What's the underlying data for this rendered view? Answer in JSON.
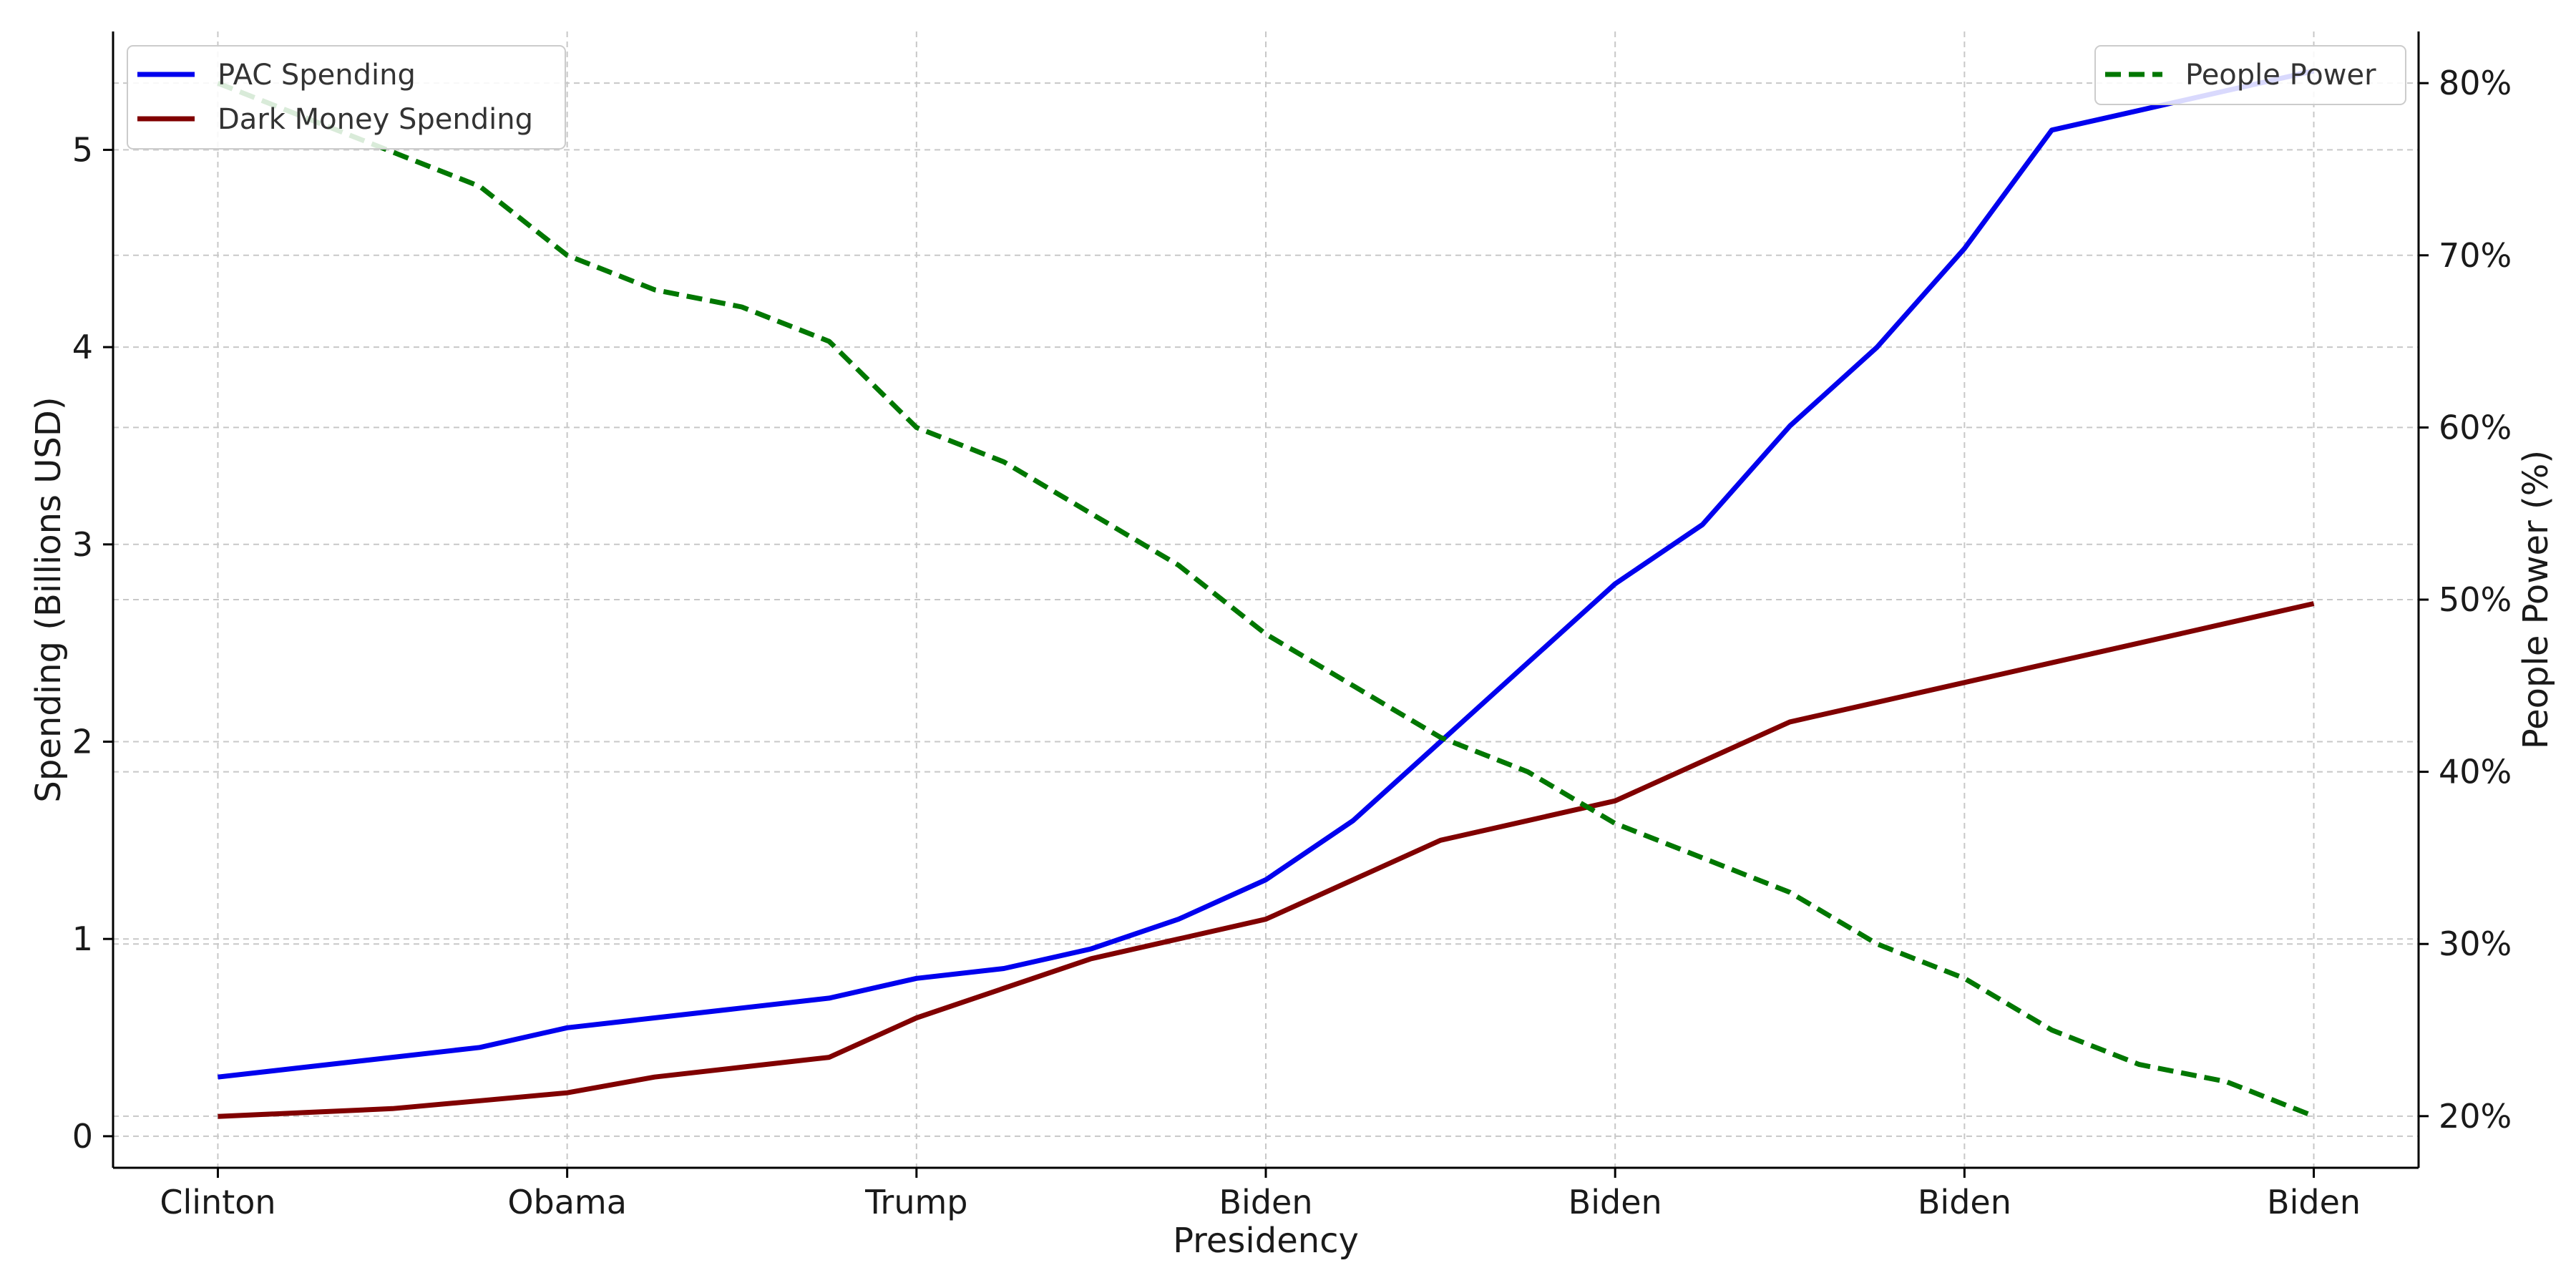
{
  "chart_data": {
    "type": "line",
    "title": "",
    "xlabel": "Presidency",
    "ylabel": "Spending (Billions USD)",
    "y2label": "People Power (%)",
    "x_tick_labels": [
      "Clinton",
      "Obama",
      "Trump",
      "Biden",
      "Biden",
      "Biden",
      "Biden"
    ],
    "x": [
      1992,
      1993,
      1994,
      1995,
      1996,
      1997,
      1998,
      1999,
      2000,
      2001,
      2002,
      2003,
      2004,
      2005,
      2006,
      2007,
      2008,
      2009,
      2010,
      2011,
      2012,
      2013,
      2014,
      2015,
      2016
    ],
    "xlim": [
      1990.8,
      2017.2
    ],
    "ylim": [
      -0.16,
      5.6
    ],
    "y2lim": [
      17,
      83
    ],
    "y_ticks": [
      0,
      1,
      2,
      3,
      4,
      5
    ],
    "y2_ticks": [
      20,
      30,
      40,
      50,
      60,
      70,
      80
    ],
    "y2_tick_labels": [
      "20%",
      "30%",
      "40%",
      "50%",
      "60%",
      "70%",
      "80%"
    ],
    "grid": true,
    "grid_style": "dashed",
    "series": [
      {
        "name": "PAC Spending",
        "axis": "left",
        "color": "#0000ee",
        "style": "solid",
        "values": [
          0.3,
          0.35,
          0.4,
          0.45,
          0.55,
          0.6,
          0.65,
          0.7,
          0.8,
          0.85,
          0.95,
          1.1,
          1.3,
          1.6,
          2.0,
          2.4,
          2.8,
          3.1,
          3.6,
          4.0,
          4.5,
          5.1,
          5.2,
          5.3,
          5.4
        ]
      },
      {
        "name": "Dark Money Spending",
        "axis": "left",
        "color": "#800000",
        "style": "solid",
        "values": [
          0.1,
          0.12,
          0.14,
          0.18,
          0.22,
          0.3,
          0.35,
          0.4,
          0.6,
          0.75,
          0.9,
          1.0,
          1.1,
          1.3,
          1.5,
          1.6,
          1.7,
          1.9,
          2.1,
          2.2,
          2.3,
          2.4,
          2.5,
          2.6,
          2.7
        ]
      },
      {
        "name": "People Power",
        "axis": "right",
        "color": "#007700",
        "style": "dashed",
        "values": [
          80,
          78,
          76,
          74,
          70,
          68,
          67,
          65,
          60,
          58,
          55,
          52,
          48,
          45,
          42,
          40,
          37,
          35,
          33,
          30,
          28,
          25,
          23,
          22,
          20
        ]
      }
    ],
    "legends": [
      {
        "placement": "top-left",
        "entries": [
          "PAC Spending",
          "Dark Money Spending"
        ]
      },
      {
        "placement": "top-right",
        "entries": [
          "People Power"
        ]
      }
    ]
  }
}
